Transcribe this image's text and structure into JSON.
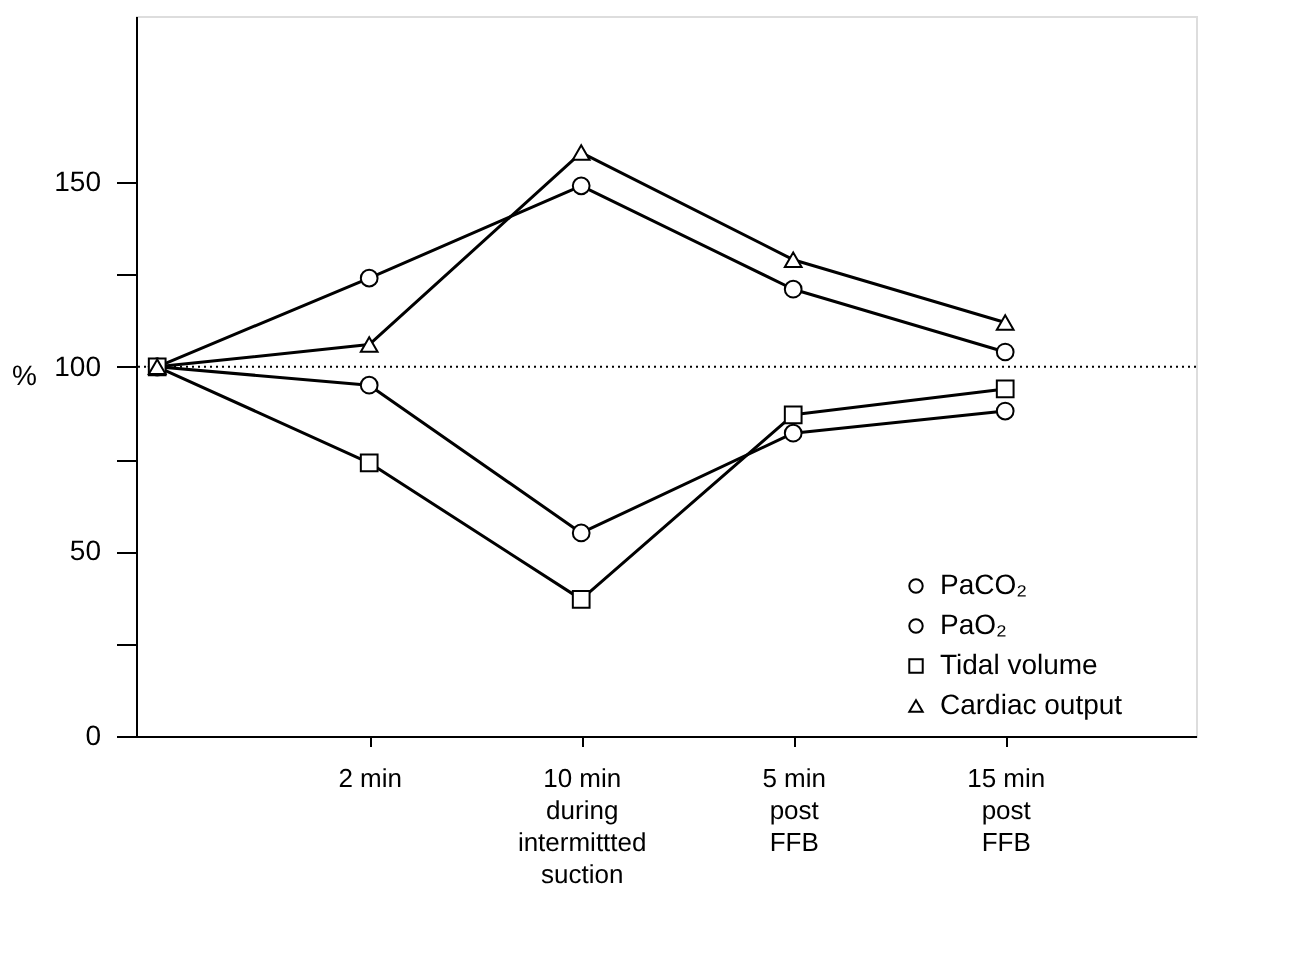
{
  "chart_data": {
    "type": "line",
    "ylabel": "%",
    "categories": [
      null,
      "2 min",
      "10 min\nduring\nintermittted\nsuction",
      "5 min\npost\nFFB",
      "15 min\npost\nFFB"
    ],
    "series": [
      {
        "name": "PaCO₂",
        "color": "#000000",
        "marker": "circle",
        "values": [
          100,
          124,
          149,
          121,
          104
        ]
      },
      {
        "name": "PaO₂",
        "color": "#000000",
        "marker": "circle",
        "values": [
          100,
          95,
          55,
          82,
          88
        ]
      },
      {
        "name": "Tidal volume",
        "color": "#000000",
        "marker": "square",
        "values": [
          100,
          74,
          37,
          87,
          94
        ]
      },
      {
        "name": "Cardiac output",
        "color": "#000000",
        "marker": "triangle",
        "values": [
          100,
          106,
          158,
          129,
          112
        ]
      }
    ],
    "ylim": [
      0,
      195
    ],
    "yticks": [
      0,
      {
        "value": 25,
        "label": null
      },
      50,
      {
        "value": 75,
        "label": null
      },
      100,
      {
        "value": 125,
        "label": null
      },
      150
    ],
    "ref_lines": [
      {
        "axis": "y",
        "value": 100,
        "label": null,
        "color": "#000000",
        "line_style": "dotted"
      }
    ],
    "legend": "bottom right",
    "grid": false,
    "line_style": "solid"
  }
}
